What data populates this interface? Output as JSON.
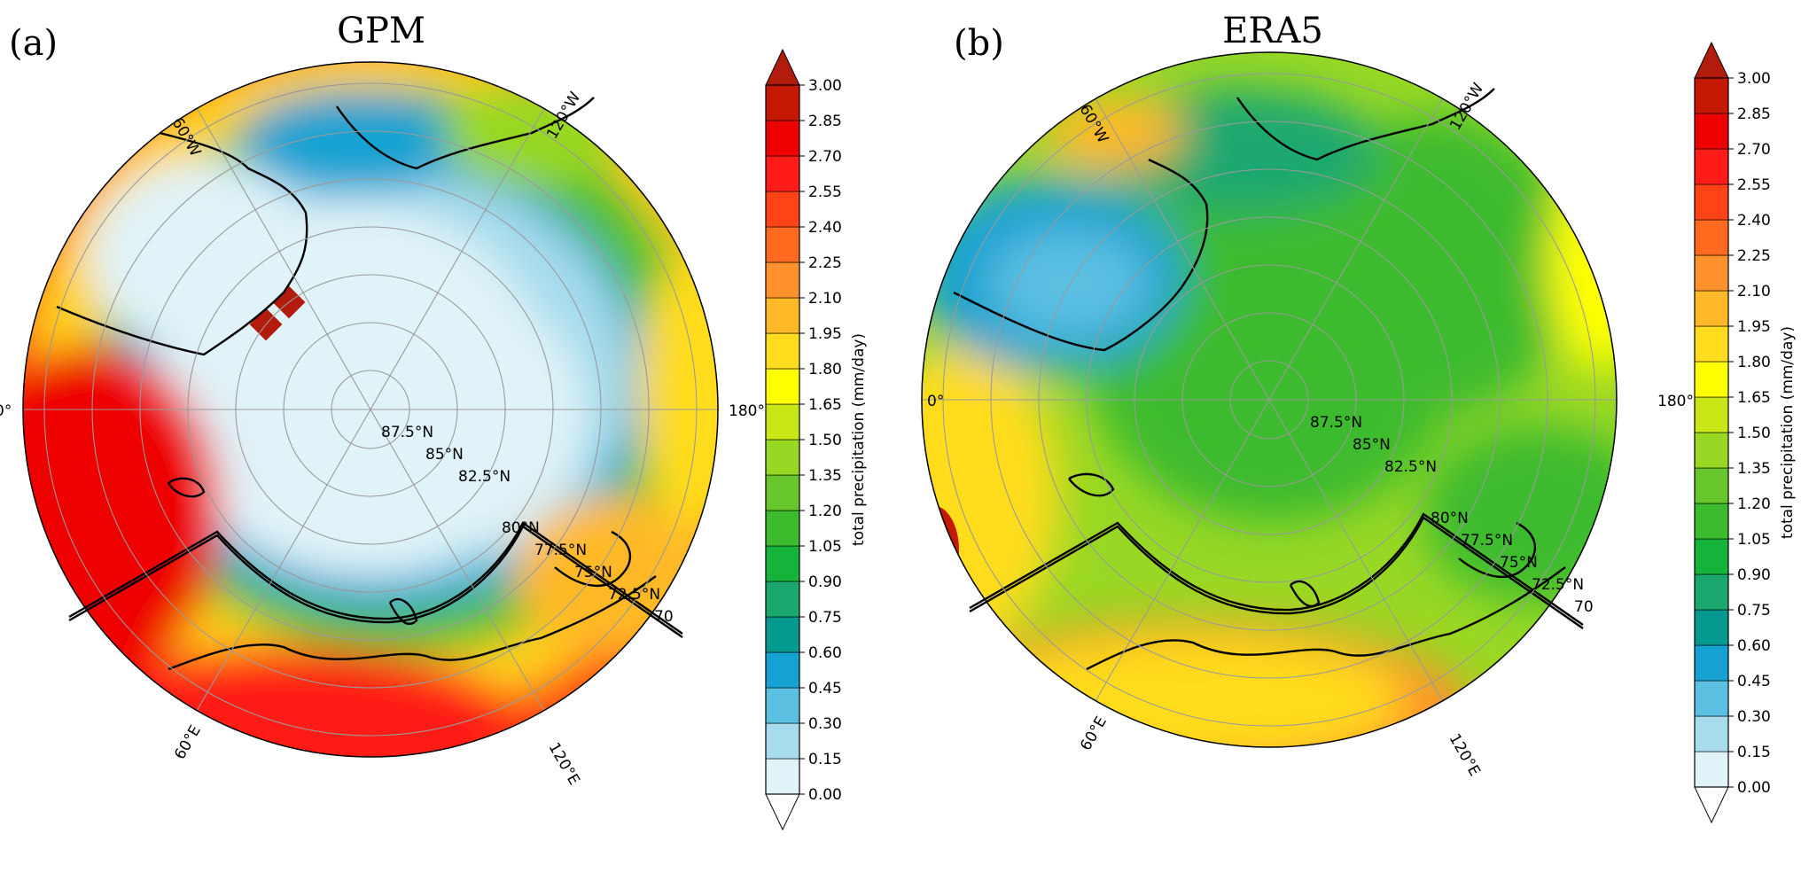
{
  "figure": {
    "panels": [
      {
        "letter": "(a)",
        "title": "GPM"
      },
      {
        "letter": "(b)",
        "title": "ERA5"
      }
    ],
    "colorbar": {
      "label": "total precipitation (mm/day)",
      "ticks": [
        "0.00",
        "0.15",
        "0.30",
        "0.45",
        "0.60",
        "0.75",
        "0.90",
        "1.05",
        "1.20",
        "1.35",
        "1.50",
        "1.65",
        "1.80",
        "1.95",
        "2.10",
        "2.25",
        "2.40",
        "2.55",
        "2.70",
        "2.85",
        "3.00"
      ],
      "colors": [
        "#e0f3f8",
        "#a6dcec",
        "#5cc0e2",
        "#15a2d2",
        "#06998f",
        "#1aa86f",
        "#15b33a",
        "#3cbb2e",
        "#67c62b",
        "#98d824",
        "#cbe617",
        "#ffff00",
        "#ffdc1e",
        "#ffb927",
        "#ff922c",
        "#ff6a1e",
        "#ff4316",
        "#ff1b17",
        "#ee0000",
        "#c41800"
      ],
      "extend_top_color": "#b31b0c",
      "extend_bottom_color": "#ffffff"
    },
    "longitude_labels": [
      "60°W",
      "120°W",
      "0°",
      "180°",
      "60°E",
      "120°E"
    ],
    "latitude_labels": [
      "87.5°N",
      "85°N",
      "82.5°N",
      "80°N",
      "77.5°N",
      "75°N",
      "72.5°N",
      "70"
    ]
  }
}
